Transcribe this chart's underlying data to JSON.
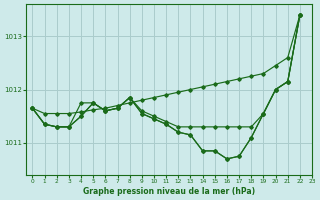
{
  "background_color": "#ceeaea",
  "grid_color": "#aacccc",
  "line_color": "#1a6b1a",
  "title": "Graphe pression niveau de la mer (hPa)",
  "xlim": [
    -0.5,
    23
  ],
  "ylim": [
    1010.4,
    1013.6
  ],
  "yticks": [
    1011,
    1012,
    1013
  ],
  "xticks": [
    0,
    1,
    2,
    3,
    4,
    5,
    6,
    7,
    8,
    9,
    10,
    11,
    12,
    13,
    14,
    15,
    16,
    17,
    18,
    19,
    20,
    21,
    22,
    23
  ],
  "series": [
    {
      "x": [
        0,
        1,
        2,
        3,
        4,
        5,
        6,
        7,
        8,
        9,
        10,
        11,
        12,
        13,
        14,
        15,
        16,
        17,
        18,
        19,
        20,
        21,
        22
      ],
      "y": [
        1011.65,
        1011.55,
        1011.55,
        1011.55,
        1011.58,
        1011.62,
        1011.65,
        1011.7,
        1011.75,
        1011.8,
        1011.85,
        1011.9,
        1011.95,
        1012.0,
        1012.05,
        1012.1,
        1012.15,
        1012.2,
        1012.25,
        1012.3,
        1012.45,
        1012.6,
        1013.4
      ]
    },
    {
      "x": [
        0,
        1,
        2,
        3,
        4,
        5,
        6,
        7,
        8,
        9,
        10,
        11,
        12,
        13,
        14,
        15,
        16,
        17,
        18,
        19,
        20,
        21,
        22
      ],
      "y": [
        1011.65,
        1011.35,
        1011.3,
        1011.3,
        1011.75,
        1011.75,
        1011.6,
        1011.65,
        1011.85,
        1011.6,
        1011.5,
        1011.4,
        1011.3,
        1011.3,
        1011.3,
        1011.3,
        1011.3,
        1011.3,
        1011.3,
        1011.55,
        1012.0,
        1012.15,
        1013.4
      ]
    },
    {
      "x": [
        0,
        1,
        2,
        3,
        4,
        5,
        6,
        7,
        8,
        9,
        10,
        11,
        12,
        13,
        14,
        15,
        16,
        17,
        18,
        19,
        20,
        21,
        22
      ],
      "y": [
        1011.65,
        1011.35,
        1011.3,
        1011.3,
        1011.5,
        1011.75,
        1011.6,
        1011.65,
        1011.85,
        1011.55,
        1011.45,
        1011.35,
        1011.2,
        1011.15,
        1010.85,
        1010.85,
        1010.7,
        1010.75,
        1011.1,
        1011.55,
        1012.0,
        1012.15,
        1013.4
      ]
    },
    {
      "x": [
        0,
        1,
        2,
        3,
        4,
        5,
        6,
        7,
        8,
        9,
        10,
        11,
        12,
        13,
        14,
        15,
        16,
        17,
        18,
        19,
        20,
        21,
        22
      ],
      "y": [
        1011.65,
        1011.35,
        1011.3,
        1011.3,
        1011.5,
        1011.75,
        1011.6,
        1011.65,
        1011.85,
        1011.55,
        1011.45,
        1011.35,
        1011.2,
        1011.15,
        1010.85,
        1010.85,
        1010.7,
        1010.75,
        1011.1,
        1011.55,
        1012.0,
        1012.15,
        1013.4
      ]
    }
  ]
}
